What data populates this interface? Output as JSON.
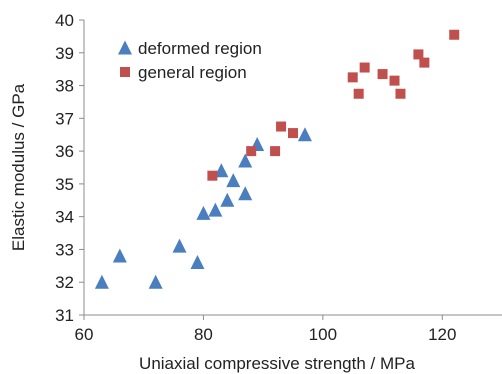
{
  "chart_data": {
    "type": "scatter",
    "title": "",
    "xlabel": "Uniaxial compressive strength / MPa",
    "ylabel": "Elastic modulus / GPa",
    "xlim": [
      60,
      130
    ],
    "ylim": [
      31,
      40
    ],
    "x_ticks": [
      60,
      80,
      100,
      120
    ],
    "y_ticks": [
      31,
      32,
      33,
      34,
      35,
      36,
      37,
      38,
      39,
      40
    ],
    "grid": false,
    "legend_position": "top-left",
    "series": [
      {
        "name": "deformed region",
        "marker": "triangle",
        "color": "#4a7ebf",
        "points": [
          {
            "x": 63,
            "y": 32.0
          },
          {
            "x": 66,
            "y": 32.8
          },
          {
            "x": 72,
            "y": 32.0
          },
          {
            "x": 76,
            "y": 33.1
          },
          {
            "x": 79,
            "y": 32.6
          },
          {
            "x": 80,
            "y": 34.1
          },
          {
            "x": 82,
            "y": 34.2
          },
          {
            "x": 83,
            "y": 35.4
          },
          {
            "x": 84,
            "y": 34.5
          },
          {
            "x": 85,
            "y": 35.1
          },
          {
            "x": 87,
            "y": 34.7
          },
          {
            "x": 87,
            "y": 35.7
          },
          {
            "x": 89,
            "y": 36.2
          },
          {
            "x": 97,
            "y": 36.5
          }
        ]
      },
      {
        "name": "general region",
        "marker": "square",
        "color": "#c0504d",
        "points": [
          {
            "x": 81.5,
            "y": 35.25
          },
          {
            "x": 88,
            "y": 36.0
          },
          {
            "x": 92,
            "y": 36.0
          },
          {
            "x": 93,
            "y": 36.75
          },
          {
            "x": 95,
            "y": 36.55
          },
          {
            "x": 105,
            "y": 38.25
          },
          {
            "x": 106,
            "y": 37.75
          },
          {
            "x": 107,
            "y": 38.55
          },
          {
            "x": 110,
            "y": 38.35
          },
          {
            "x": 112,
            "y": 38.15
          },
          {
            "x": 113,
            "y": 37.75
          },
          {
            "x": 116,
            "y": 38.95
          },
          {
            "x": 117,
            "y": 38.7
          },
          {
            "x": 122,
            "y": 39.55
          }
        ]
      }
    ]
  }
}
